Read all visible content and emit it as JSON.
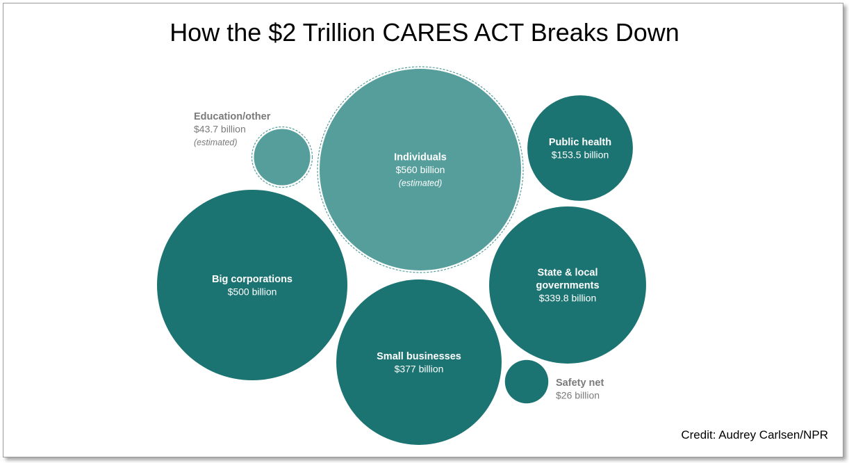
{
  "title": "How the $2 Trillion CARES ACT Breaks Down",
  "credit": "Credit: Audrey Carlsen/NPR",
  "colors": {
    "dark_teal": "#1c7472",
    "light_teal": "#559e9b",
    "outside_label": "#7a7a7a",
    "inside_label": "#ffffff"
  },
  "chart_data": {
    "type": "bubble",
    "title": "How the $2 Trillion CARES ACT Breaks Down",
    "unit": "billion USD",
    "series": [
      {
        "name": "Individuals",
        "value": 560,
        "value_label": "$560 billion",
        "note": "(estimated)",
        "estimated": true
      },
      {
        "name": "Big corporations",
        "value": 500,
        "value_label": "$500 billion",
        "note": "",
        "estimated": false
      },
      {
        "name": "Small businesses",
        "value": 377,
        "value_label": "$377 billion",
        "note": "",
        "estimated": false
      },
      {
        "name": "State & local governments",
        "name_lines": [
          "State & local",
          "governments"
        ],
        "value": 339.8,
        "value_label": "$339.8 billion",
        "note": "",
        "estimated": false
      },
      {
        "name": "Public health",
        "value": 153.5,
        "value_label": "$153.5 billion",
        "note": "",
        "estimated": false
      },
      {
        "name": "Education/other",
        "value": 43.7,
        "value_label": "$43.7 billion",
        "note": "(estimated)",
        "estimated": true
      },
      {
        "name": "Safety net",
        "value": 26,
        "value_label": "$26 billion",
        "note": "",
        "estimated": false
      }
    ]
  }
}
